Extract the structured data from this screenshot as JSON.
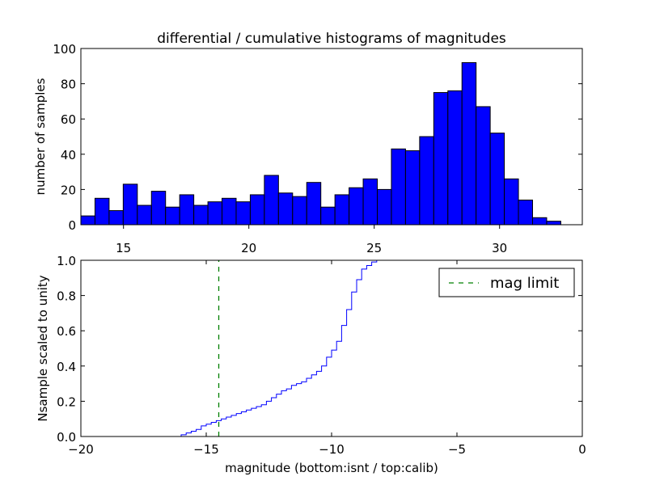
{
  "chart_data": [
    {
      "type": "bar",
      "title": "differential / cumulative histograms of magnitudes",
      "xlabel": "",
      "ylabel": "number of samples",
      "xlim": [
        13.3,
        33.3
      ],
      "ylim": [
        0,
        100
      ],
      "xticks": [
        15,
        20,
        25,
        30
      ],
      "yticks": [
        0,
        20,
        40,
        60,
        80,
        100
      ],
      "x_tick_position": "bottom-outside",
      "bin_start": 13.3,
      "bin_width": 0.563,
      "values": [
        5,
        15,
        8,
        23,
        11,
        19,
        10,
        17,
        11,
        13,
        15,
        13,
        17,
        28,
        18,
        16,
        24,
        10,
        17,
        21,
        26,
        20,
        43,
        42,
        50,
        75,
        76,
        92,
        67,
        52,
        26,
        14,
        4,
        2,
        0
      ],
      "bar_color": "#0000ff",
      "edge_color": "#000000"
    },
    {
      "type": "line",
      "title": "",
      "xlabel": "magnitude (bottom:isnt / top:calib)",
      "ylabel": "Nsample scaled to unity",
      "xlim": [
        -20,
        0
      ],
      "ylim": [
        0.0,
        1.0
      ],
      "xticks": [
        -20,
        -15,
        -10,
        -5,
        0
      ],
      "xtick_labels": [
        "−20",
        "−15",
        "−10",
        "−5",
        "0"
      ],
      "yticks": [
        0.0,
        0.2,
        0.4,
        0.6,
        0.8,
        1.0
      ],
      "ytick_labels": [
        "0.0",
        "0.2",
        "0.4",
        "0.6",
        "0.8",
        "1.0"
      ],
      "series": [
        {
          "name": "cumulative",
          "style": "step",
          "color": "#0000ff",
          "x": [
            -20.0,
            -16.2,
            -16.0,
            -15.8,
            -15.6,
            -15.4,
            -15.2,
            -15.0,
            -14.8,
            -14.6,
            -14.4,
            -14.2,
            -14.0,
            -13.8,
            -13.6,
            -13.4,
            -13.2,
            -13.0,
            -12.8,
            -12.6,
            -12.4,
            -12.2,
            -12.0,
            -11.8,
            -11.6,
            -11.4,
            -11.2,
            -11.0,
            -10.8,
            -10.6,
            -10.4,
            -10.2,
            -10.0,
            -9.8,
            -9.6,
            -9.4,
            -9.2,
            -9.0,
            -8.8,
            -8.6,
            -8.4,
            -8.2,
            -8.0
          ],
          "y": [
            0.0,
            0.0,
            0.01,
            0.02,
            0.03,
            0.04,
            0.06,
            0.07,
            0.08,
            0.09,
            0.1,
            0.11,
            0.12,
            0.13,
            0.14,
            0.15,
            0.16,
            0.17,
            0.18,
            0.2,
            0.22,
            0.24,
            0.26,
            0.27,
            0.29,
            0.3,
            0.31,
            0.33,
            0.35,
            0.37,
            0.4,
            0.45,
            0.49,
            0.54,
            0.63,
            0.72,
            0.82,
            0.89,
            0.95,
            0.97,
            0.99,
            1.0,
            1.0
          ]
        },
        {
          "name": "mag limit",
          "style": "dashed-vertical",
          "color": "#008000",
          "x": [
            -14.5,
            -14.5
          ],
          "y": [
            0.0,
            1.0
          ]
        }
      ],
      "legend": {
        "position": "top-right",
        "entries": [
          "mag limit"
        ]
      }
    }
  ]
}
